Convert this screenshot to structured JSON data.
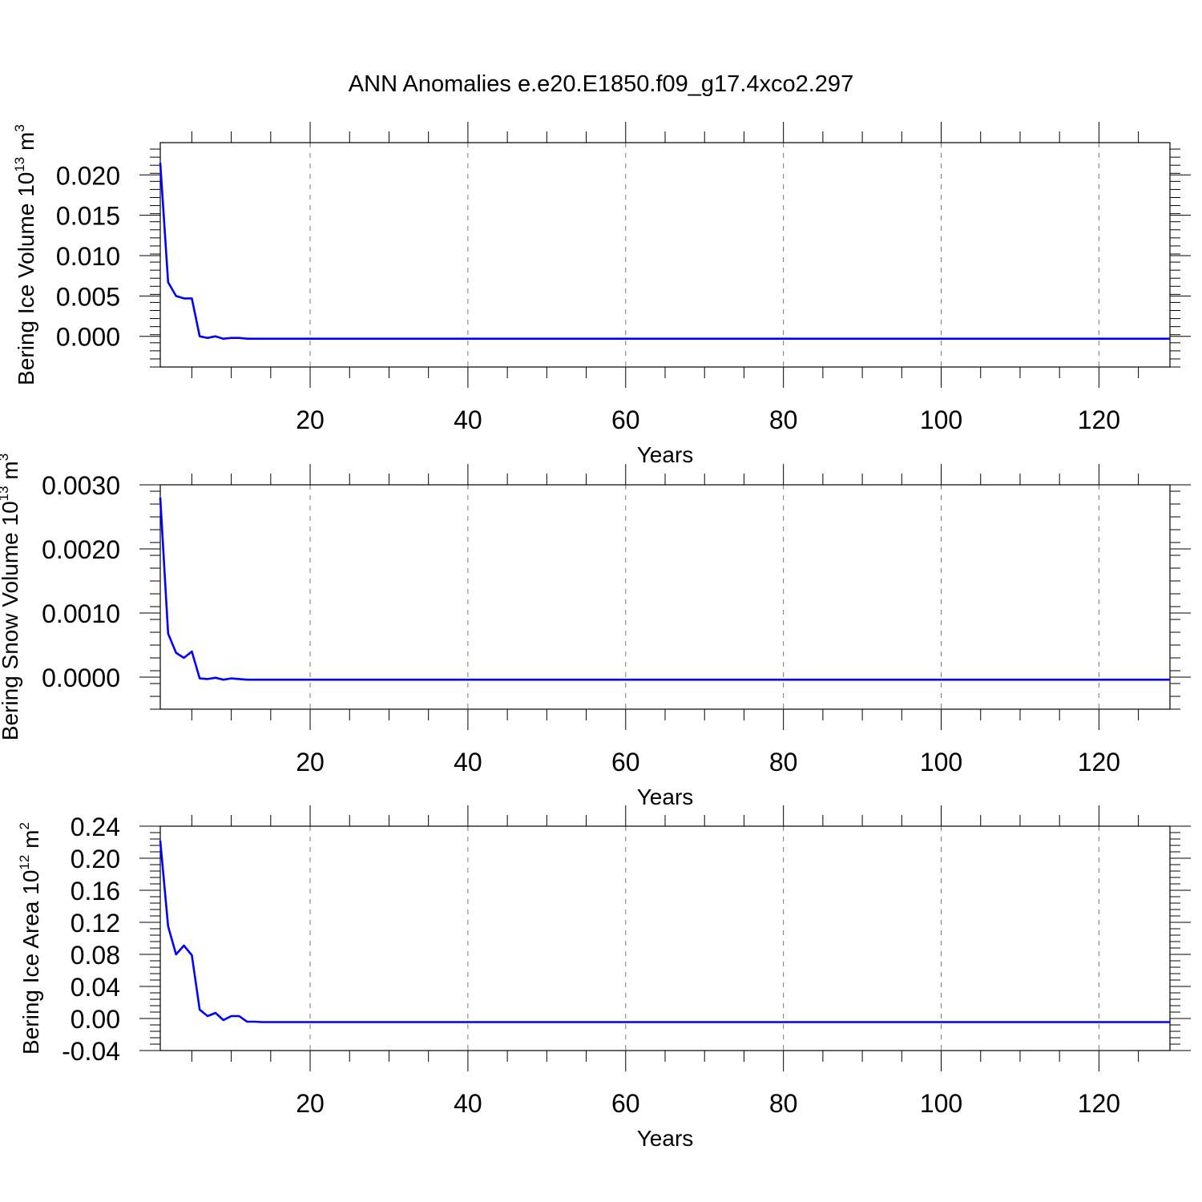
{
  "title": "ANN Anomalies e.e20.E1850.f09_g17.4xco2.297",
  "colors": {
    "line": "#0000ff",
    "axis": "#000000",
    "grid": "#777777"
  },
  "chart_data": [
    {
      "type": "line",
      "ylabel_main": "Bering Ice Volume 10",
      "ylabel_exp1": "13",
      "ylabel_unit": " m",
      "ylabel_exp2": "3",
      "xlabel": "Years",
      "xlim": [
        1,
        129
      ],
      "ylim": [
        -0.0038,
        0.024
      ],
      "yticks": [
        0.0,
        0.005,
        0.01,
        0.015,
        0.02
      ],
      "ytick_labels": [
        "0.000",
        "0.005",
        "0.010",
        "0.015",
        "0.020"
      ],
      "xticks": [
        20,
        40,
        60,
        80,
        100,
        120
      ],
      "xtick_labels": [
        "20",
        "40",
        "60",
        "80",
        "100",
        "120"
      ],
      "grid": "x-dashed",
      "series": [
        {
          "x": [
            1,
            2,
            3,
            4,
            5,
            6,
            7,
            8,
            9,
            10,
            11,
            12,
            13,
            129
          ],
          "values": [
            0.0215,
            0.0067,
            0.005,
            0.0047,
            0.0047,
            0.0,
            -0.0002,
            0.0,
            -0.0003,
            -0.0002,
            -0.0002,
            -0.0003,
            -0.0003,
            -0.0003
          ]
        }
      ]
    },
    {
      "type": "line",
      "ylabel_main": "Bering Snow Volume 10",
      "ylabel_exp1": "13",
      "ylabel_unit": " m",
      "ylabel_exp2": "3",
      "xlabel": "Years",
      "xlim": [
        1,
        129
      ],
      "ylim": [
        -0.0005,
        0.003
      ],
      "yticks": [
        0.0,
        0.001,
        0.002,
        0.003
      ],
      "ytick_labels": [
        "0.0000",
        "0.0010",
        "0.0020",
        "0.0030"
      ],
      "xticks": [
        20,
        40,
        60,
        80,
        100,
        120
      ],
      "xtick_labels": [
        "20",
        "40",
        "60",
        "80",
        "100",
        "120"
      ],
      "grid": "x-dashed",
      "series": [
        {
          "x": [
            1,
            2,
            3,
            4,
            5,
            6,
            7,
            8,
            9,
            10,
            11,
            12,
            13,
            129
          ],
          "values": [
            0.0028,
            0.00068,
            0.00038,
            0.0003,
            0.0004,
            -2e-05,
            -3e-05,
            -1e-05,
            -4e-05,
            -2e-05,
            -3e-05,
            -4e-05,
            -4e-05,
            -4e-05
          ]
        }
      ]
    },
    {
      "type": "line",
      "ylabel_main": "Bering Ice Area 10",
      "ylabel_exp1": "12",
      "ylabel_unit": " m",
      "ylabel_exp2": "2",
      "xlabel": "Years",
      "xlim": [
        1,
        129
      ],
      "ylim": [
        -0.04,
        0.24
      ],
      "yticks": [
        -0.04,
        0.0,
        0.04,
        0.08,
        0.12,
        0.16,
        0.2,
        0.24
      ],
      "ytick_labels": [
        "-0.04",
        "0.00",
        "0.04",
        "0.08",
        "0.12",
        "0.16",
        "0.20",
        "0.24"
      ],
      "xticks": [
        20,
        40,
        60,
        80,
        100,
        120
      ],
      "xtick_labels": [
        "20",
        "40",
        "60",
        "80",
        "100",
        "120"
      ],
      "grid": "x-dashed",
      "series": [
        {
          "x": [
            1,
            2,
            3,
            4,
            5,
            6,
            7,
            8,
            9,
            10,
            11,
            12,
            13,
            14,
            129
          ],
          "values": [
            0.222,
            0.115,
            0.08,
            0.091,
            0.079,
            0.011,
            0.003,
            0.007,
            -0.002,
            0.003,
            0.003,
            -0.004,
            -0.004,
            -0.0045,
            -0.0045
          ]
        }
      ]
    }
  ]
}
